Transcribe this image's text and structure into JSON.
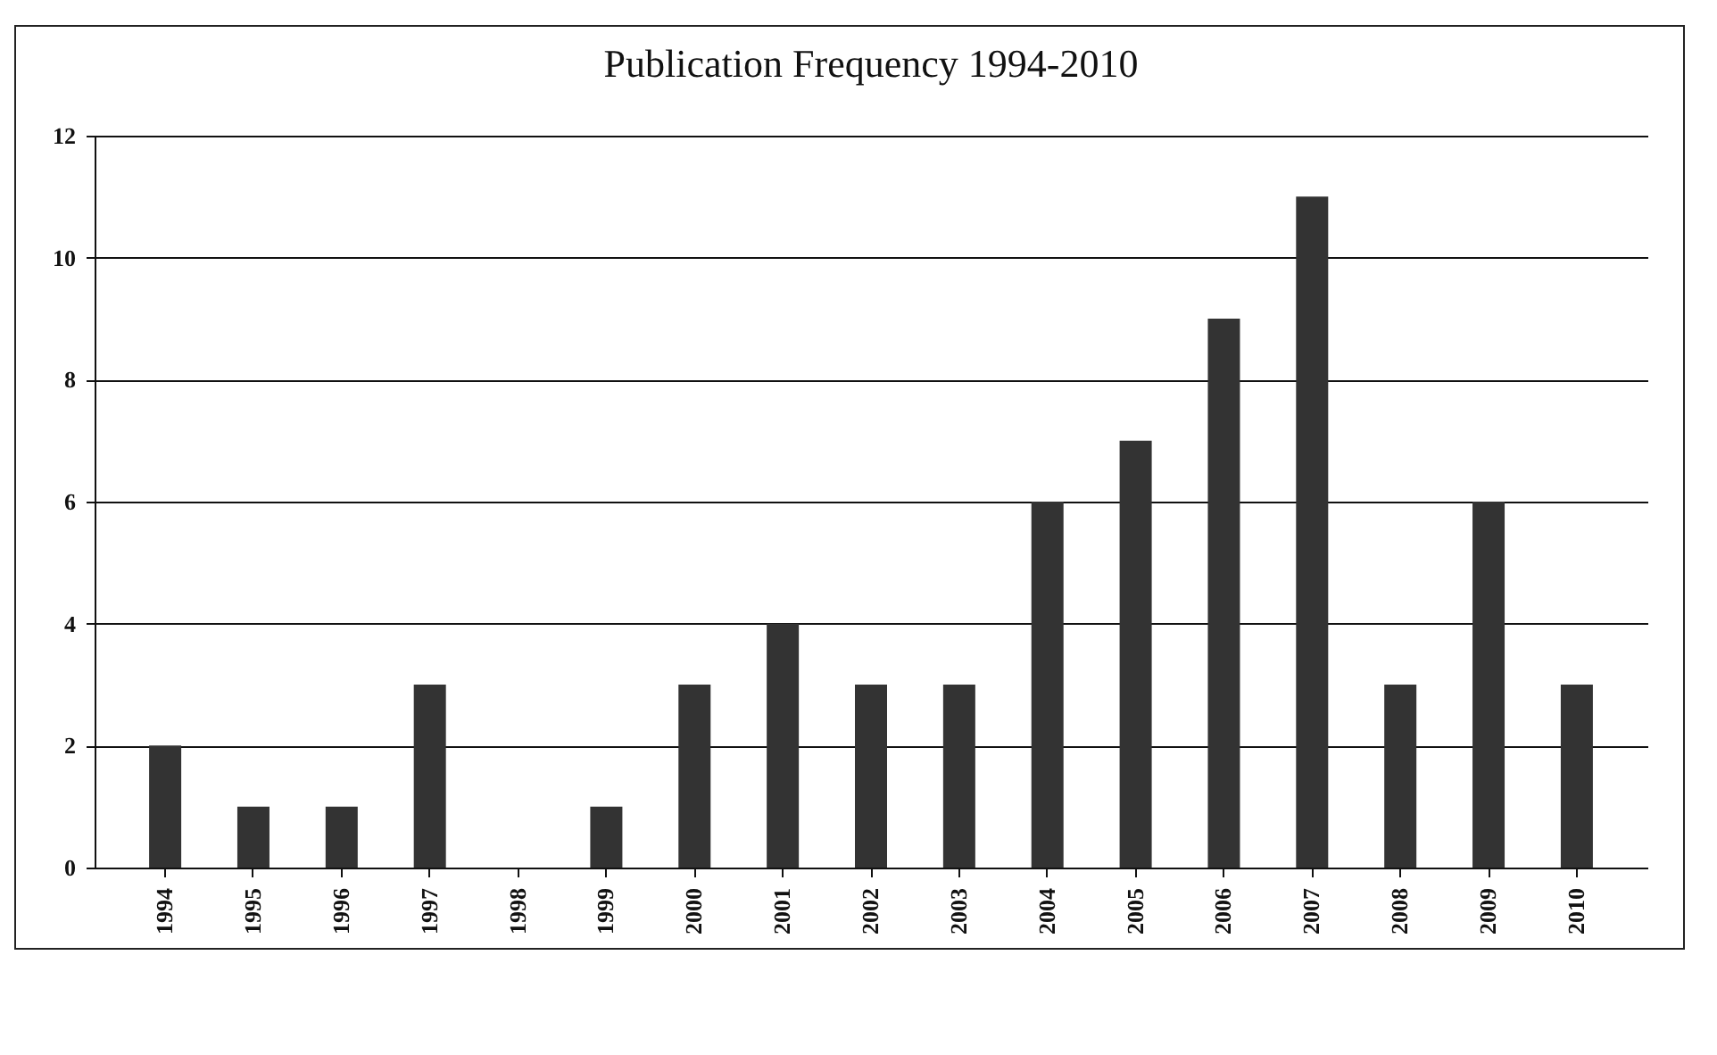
{
  "chart_data": {
    "type": "bar",
    "title": "Publication Frequency 1994-2010",
    "categories": [
      "1994",
      "1995",
      "1996",
      "1997",
      "1998",
      "1999",
      "2000",
      "2001",
      "2002",
      "2003",
      "2004",
      "2005",
      "2006",
      "2007",
      "2008",
      "2009",
      "2010"
    ],
    "values": [
      2,
      1,
      1,
      3,
      0,
      1,
      3,
      4,
      3,
      3,
      6,
      7,
      9,
      11,
      3,
      6,
      3
    ],
    "color": "#333333",
    "ylim": [
      0,
      12
    ],
    "yticks": [
      0,
      2,
      4,
      6,
      8,
      10,
      12
    ],
    "grid": "y"
  }
}
